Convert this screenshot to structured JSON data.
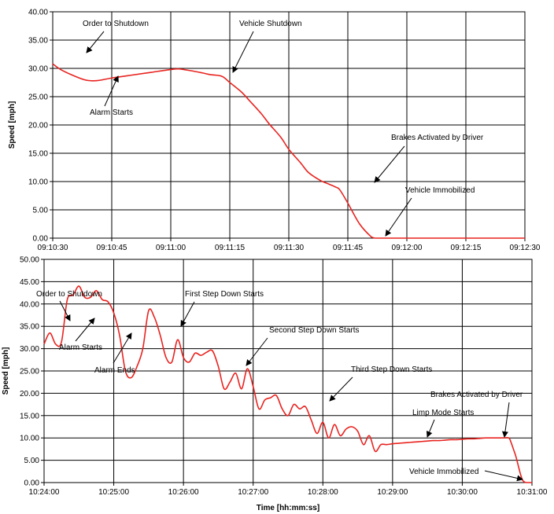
{
  "chart_data": [
    {
      "type": "line",
      "title": "",
      "xlabel": "",
      "ylabel": "Speed [mph]",
      "ylim": [
        0,
        40
      ],
      "yticks": [
        "0.00",
        "5.00",
        "10.00",
        "15.00",
        "20.00",
        "25.00",
        "30.00",
        "35.00",
        "40.00"
      ],
      "xlim": [
        0,
        120
      ],
      "xticks": [
        "09:10:30",
        "09:10:45",
        "09:11:00",
        "09:11:15",
        "09:11:30",
        "09:11:45",
        "09:12:00",
        "09:12:15",
        "09:12:30"
      ],
      "grid": true,
      "line_color": "#e8231f",
      "series": [
        {
          "x": [
            0,
            2,
            5,
            8,
            10,
            12,
            15,
            18,
            20,
            25,
            30,
            32,
            35,
            38,
            40,
            43,
            45,
            48,
            50,
            53,
            55,
            58,
            60,
            63,
            65,
            68,
            70,
            72,
            73,
            75,
            78,
            81,
            82,
            82.5,
            83,
            84,
            85,
            87,
            90,
            95,
            100,
            105,
            110,
            115,
            120
          ],
          "y": [
            30.8,
            29.8,
            28.8,
            28.0,
            27.8,
            27.9,
            28.3,
            28.6,
            28.8,
            29.3,
            29.8,
            29.9,
            29.6,
            29.2,
            28.9,
            28.6,
            27.5,
            25.8,
            24.3,
            22.0,
            20.2,
            17.8,
            15.7,
            13.3,
            11.6,
            10.2,
            9.6,
            9.0,
            8.5,
            6.2,
            2.5,
            0.2,
            0.0,
            0.0,
            0.0,
            0.0,
            0.0,
            0.0,
            0.0,
            0.0,
            0.0,
            0.0,
            0.0,
            0.0,
            0.0
          ]
        }
      ],
      "annotations": [
        {
          "text": "Order to Shutdown",
          "x": 10,
          "y": 27.8
        },
        {
          "text": "Alarm Starts",
          "x": 15,
          "y": 28.3
        },
        {
          "text": "Vehicle Shutdown",
          "x": 45,
          "y": 28.8
        },
        {
          "text": "Brakes Activated by Driver",
          "x": 73,
          "y": 8.5
        },
        {
          "text": "Vehicle Immobilized",
          "x": 82,
          "y": 0.2
        }
      ]
    },
    {
      "type": "line",
      "title": "",
      "xlabel": "Time [hh:mm:ss]",
      "ylabel": "Speed [mph]",
      "ylim": [
        0,
        50
      ],
      "yticks": [
        "0.00",
        "5.00",
        "10.00",
        "15.00",
        "20.00",
        "25.00",
        "30.00",
        "35.00",
        "40.00",
        "45.00",
        "50.00"
      ],
      "xlim": [
        0,
        420
      ],
      "xticks": [
        "10:24:00",
        "10:25:00",
        "10:26:00",
        "10:27:00",
        "10:28:00",
        "10:29:00",
        "10:30:00",
        "10:31:00"
      ],
      "grid": true,
      "line_color": "#e8231f",
      "series": [
        {
          "x": [
            0,
            5,
            10,
            15,
            20,
            25,
            30,
            35,
            40,
            45,
            50,
            55,
            60,
            65,
            70,
            75,
            80,
            85,
            90,
            95,
            100,
            105,
            110,
            115,
            120,
            125,
            130,
            135,
            140,
            145,
            150,
            155,
            160,
            165,
            170,
            175,
            180,
            185,
            190,
            195,
            200,
            205,
            210,
            215,
            220,
            225,
            230,
            235,
            240,
            245,
            250,
            255,
            260,
            265,
            270,
            275,
            280,
            285,
            290,
            295,
            300,
            305,
            310,
            315,
            320,
            325,
            330,
            335,
            340,
            345,
            350,
            355,
            360,
            365,
            370,
            375,
            380,
            385,
            390,
            395,
            400,
            402,
            404,
            406,
            408,
            410,
            412,
            415,
            420
          ],
          "y": [
            31.0,
            33.5,
            31.0,
            31.5,
            41.0,
            42.0,
            44.0,
            41.5,
            41.5,
            43.0,
            41.0,
            40.5,
            38.0,
            33.0,
            25.0,
            23.5,
            26.0,
            30.0,
            38.5,
            37.0,
            33.0,
            28.0,
            27.0,
            32.0,
            28.0,
            27.0,
            29.0,
            28.5,
            29.2,
            29.5,
            26.0,
            21.0,
            22.5,
            24.5,
            21.0,
            25.5,
            21.5,
            16.5,
            18.5,
            19.0,
            19.5,
            16.5,
            15.0,
            17.5,
            16.5,
            17.0,
            14.0,
            11.0,
            13.5,
            10.0,
            13.0,
            10.5,
            12.0,
            12.5,
            11.5,
            8.5,
            10.5,
            7.0,
            8.5,
            8.5,
            8.7,
            8.8,
            8.9,
            9.0,
            9.1,
            9.2,
            9.3,
            9.4,
            9.4,
            9.5,
            9.6,
            9.6,
            9.7,
            9.8,
            9.8,
            9.9,
            10.0,
            10.0,
            10.0,
            10.0,
            10.0,
            9.0,
            7.5,
            6.0,
            4.0,
            2.0,
            0.5,
            0.0,
            0.0
          ]
        }
      ],
      "annotations": [
        {
          "text": "Order to Shutdown",
          "x": 20,
          "y": 41
        },
        {
          "text": "Alarm Starts",
          "x": 30,
          "y": 43
        },
        {
          "text": "Alarm Ends",
          "x": 60,
          "y": 38
        },
        {
          "text": "First Step Down Starts",
          "x": 90,
          "y": 38.5
        },
        {
          "text": "Second Step Down Starts",
          "x": 148,
          "y": 28.5
        },
        {
          "text": "Third Step Down Starts",
          "x": 200,
          "y": 19.5
        },
        {
          "text": "Limp Mode Starts",
          "x": 272,
          "y": 10.5
        },
        {
          "text": "Brakes Activated by Driver",
          "x": 385,
          "y": 10
        },
        {
          "text": "Vehicle Immobilized",
          "x": 410,
          "y": 0.5
        }
      ]
    }
  ]
}
